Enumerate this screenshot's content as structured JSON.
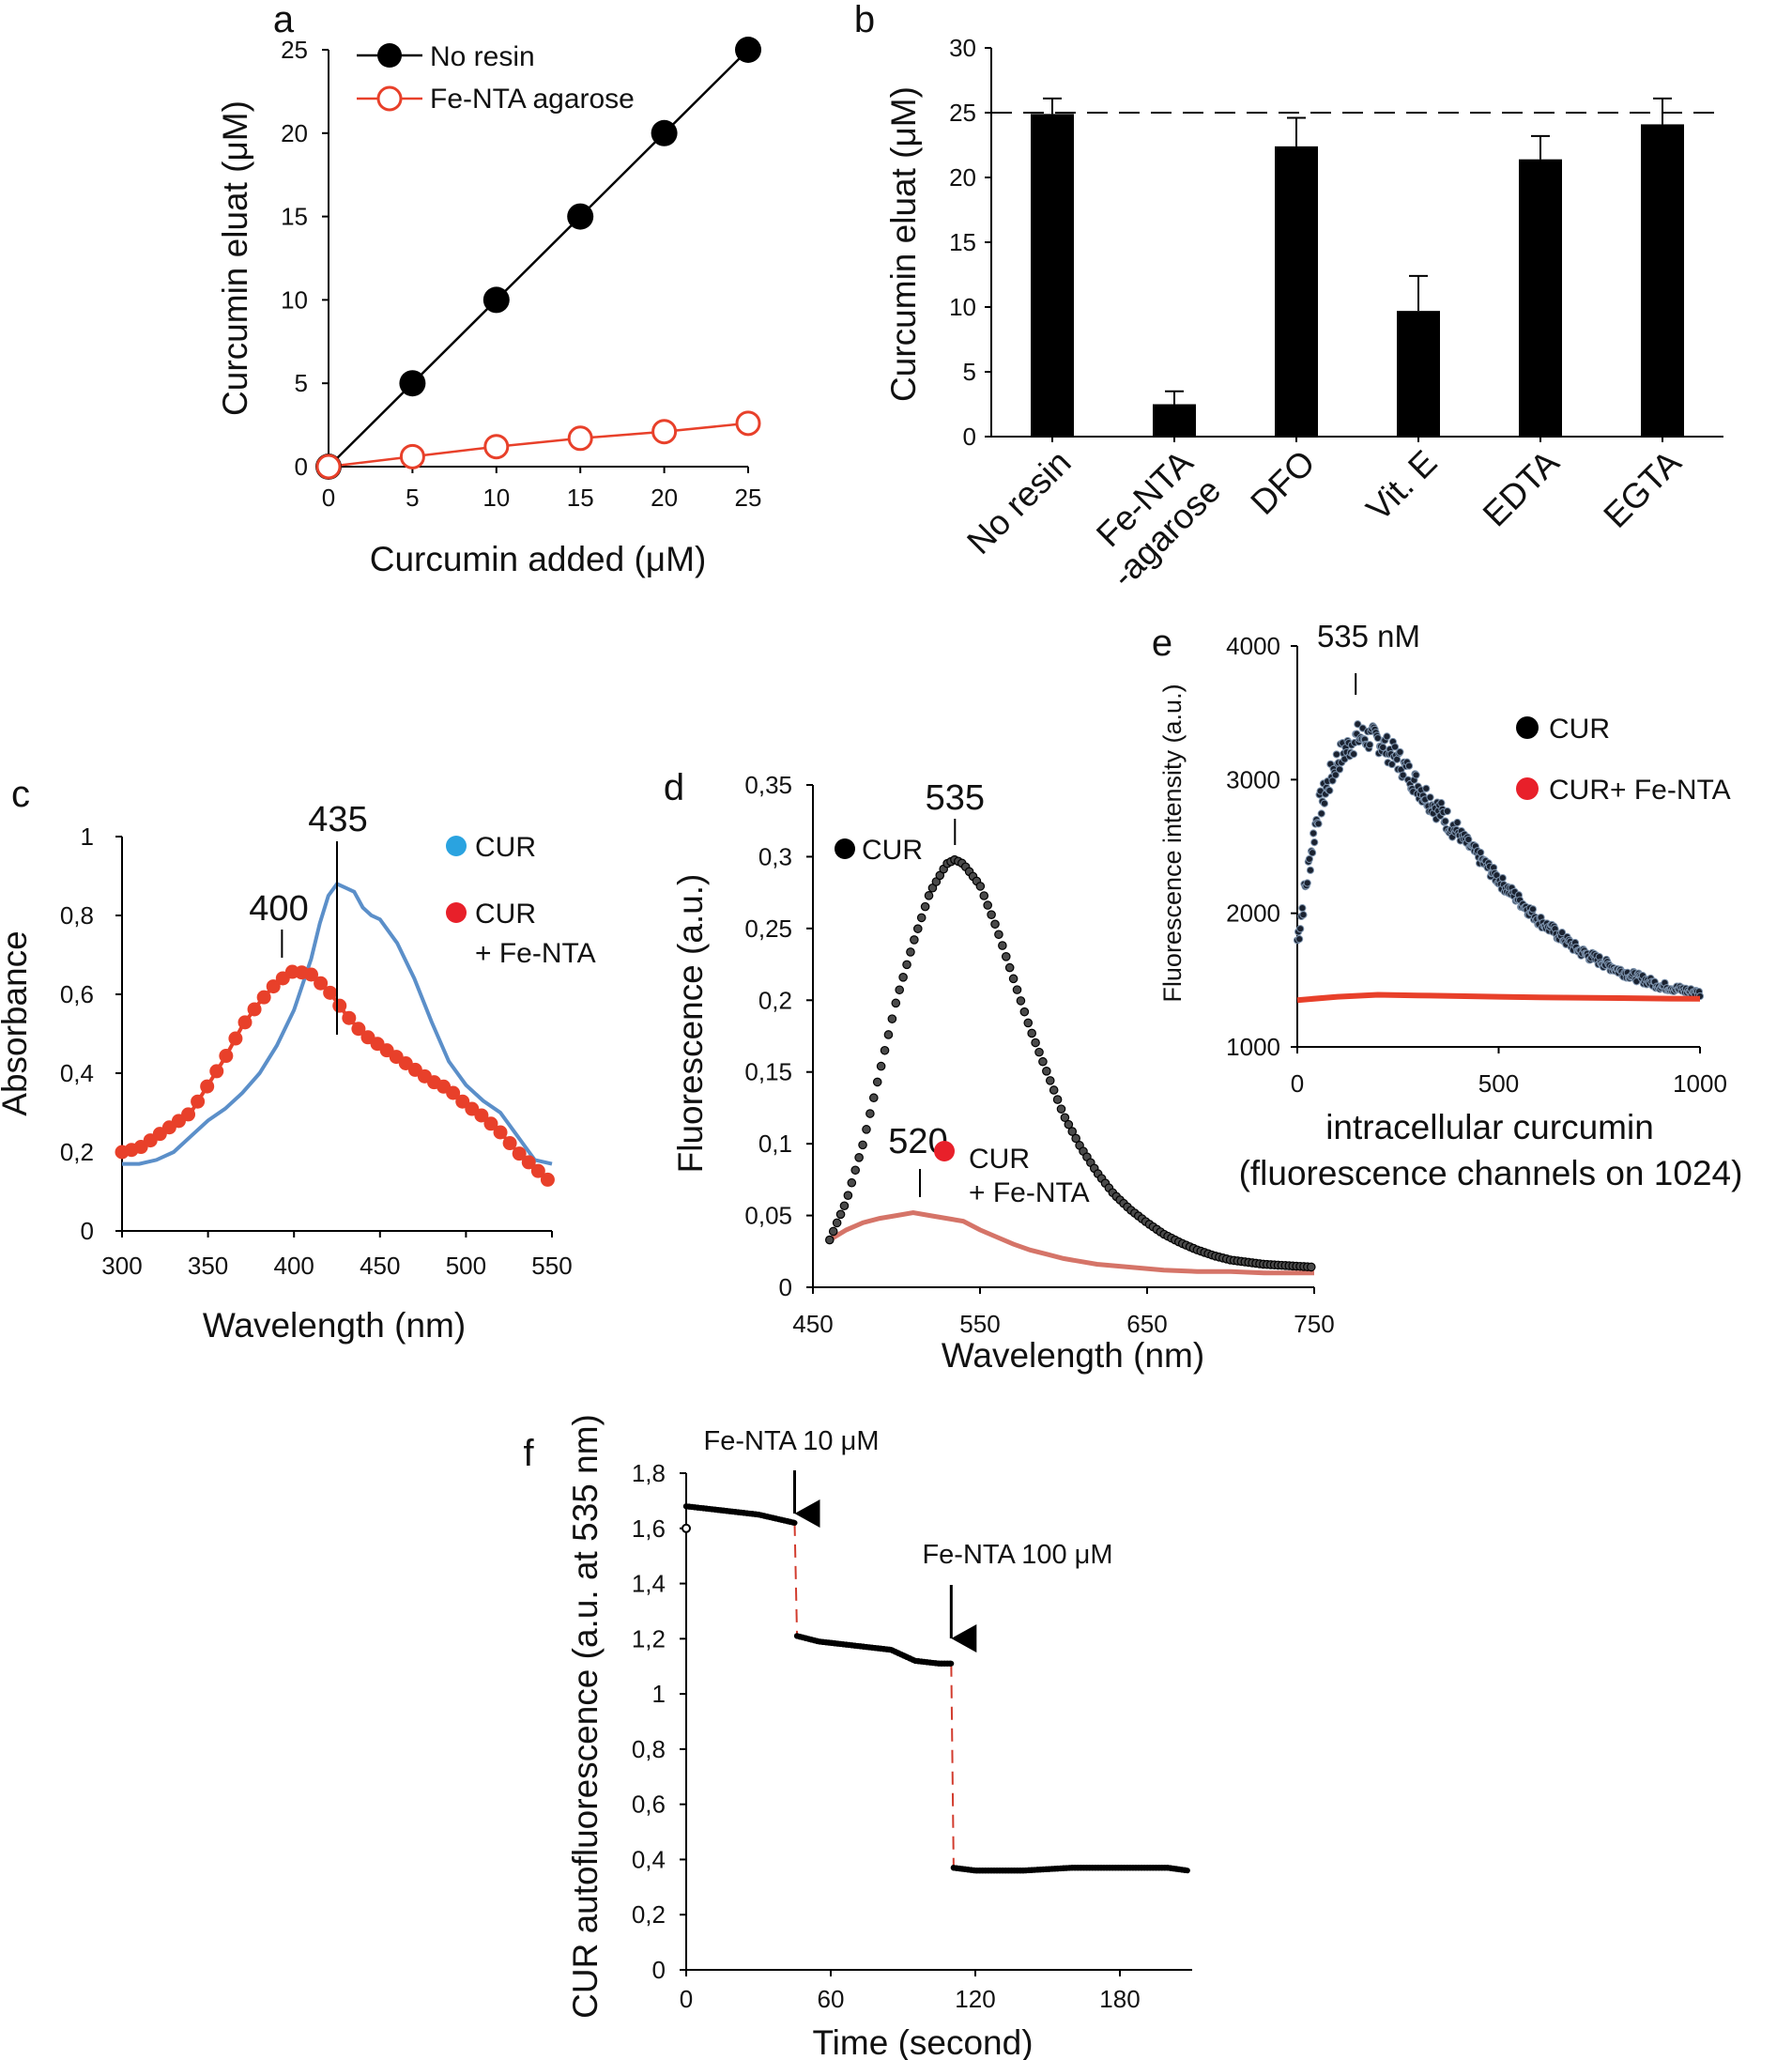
{
  "chart_data": [
    {
      "panel": "a",
      "type": "line",
      "xlabel": "Curcumin added (μM)",
      "ylabel": "Curcumin eluat (μM)",
      "xlim": [
        0,
        25
      ],
      "ylim": [
        0,
        25
      ],
      "xticks": [
        "0",
        "5",
        "10",
        "15",
        "20",
        "25"
      ],
      "yticks": [
        "0",
        "5",
        "10",
        "15",
        "20",
        "25"
      ],
      "legend_position": "top-left",
      "series": [
        {
          "name": "No resin",
          "color": "#000000",
          "marker": "filled-circle",
          "x": [
            0,
            5,
            10,
            15,
            20,
            25
          ],
          "values": [
            0,
            5,
            10,
            15,
            20,
            25
          ]
        },
        {
          "name": "Fe-NTA agarose",
          "color": "#e8402a",
          "marker": "open-circle",
          "x": [
            0,
            5,
            10,
            15,
            20,
            25
          ],
          "values": [
            0,
            0.6,
            1.2,
            1.7,
            2.1,
            2.6
          ]
        }
      ]
    },
    {
      "panel": "b",
      "type": "bar",
      "ylabel": "Curcumin eluat (μM)",
      "ylim": [
        0,
        30
      ],
      "yticks": [
        "0",
        "5",
        "10",
        "15",
        "20",
        "25",
        "30"
      ],
      "categories": [
        "No resin",
        "Fe-NTA\n-agarose",
        "DFO",
        "Vit. E",
        "EDTA",
        "EGTA"
      ],
      "values": [
        24.9,
        2.5,
        22.4,
        9.7,
        21.4,
        24.1
      ],
      "errors": [
        1.2,
        1.0,
        2.2,
        2.7,
        1.8,
        2.0
      ],
      "reference_line": 25,
      "color": "#000000"
    },
    {
      "panel": "c",
      "type": "line",
      "xlabel": "Wavelength (nm)",
      "ylabel": "Absorbance",
      "xlim": [
        300,
        550
      ],
      "ylim": [
        0,
        1
      ],
      "xticks": [
        "300",
        "350",
        "400",
        "450",
        "500",
        "550"
      ],
      "yticks": [
        "0",
        "0,2",
        "0,4",
        "0,6",
        "0,8",
        "1"
      ],
      "annotations": [
        "435",
        "400"
      ],
      "legend": [
        "CUR",
        "CUR\n+ Fe-NTA"
      ],
      "series": [
        {
          "name": "CUR",
          "color": "#5b8fc9",
          "x": [
            300,
            310,
            320,
            330,
            340,
            350,
            360,
            370,
            380,
            390,
            400,
            410,
            415,
            420,
            425,
            430,
            435,
            440,
            445,
            450,
            460,
            470,
            480,
            490,
            500,
            510,
            520,
            530,
            540,
            550
          ],
          "values": [
            0.17,
            0.17,
            0.18,
            0.2,
            0.24,
            0.28,
            0.31,
            0.35,
            0.4,
            0.47,
            0.56,
            0.69,
            0.78,
            0.85,
            0.88,
            0.87,
            0.86,
            0.82,
            0.8,
            0.79,
            0.73,
            0.64,
            0.53,
            0.43,
            0.37,
            0.33,
            0.3,
            0.24,
            0.18,
            0.17
          ]
        },
        {
          "name": "CUR + Fe-NTA",
          "color": "#e8402a",
          "x": [
            300,
            310,
            320,
            330,
            340,
            350,
            360,
            370,
            380,
            390,
            400,
            410,
            420,
            430,
            440,
            450,
            460,
            470,
            480,
            490,
            500,
            510,
            520,
            530,
            540,
            550
          ],
          "values": [
            0.2,
            0.21,
            0.24,
            0.27,
            0.3,
            0.37,
            0.44,
            0.52,
            0.58,
            0.63,
            0.66,
            0.65,
            0.61,
            0.55,
            0.5,
            0.47,
            0.44,
            0.41,
            0.38,
            0.36,
            0.32,
            0.29,
            0.25,
            0.2,
            0.16,
            0.12
          ]
        }
      ]
    },
    {
      "panel": "d",
      "type": "line",
      "xlabel": "Wavelength (nm)",
      "ylabel": "Fluorescence (a.u.)",
      "xlim": [
        450,
        750
      ],
      "ylim": [
        0,
        0.35
      ],
      "xticks": [
        "450",
        "550",
        "650",
        "750"
      ],
      "yticks": [
        "0",
        "0,05",
        "0,1",
        "0,15",
        "0,2",
        "0,25",
        "0,3",
        "0,35"
      ],
      "annotations": [
        "535",
        "520"
      ],
      "legend": [
        "CUR",
        "CUR\n+ Fe-NTA"
      ],
      "series": [
        {
          "name": "CUR",
          "color": "#000000",
          "x": [
            460,
            470,
            480,
            490,
            500,
            510,
            520,
            530,
            535,
            540,
            550,
            560,
            570,
            580,
            590,
            600,
            610,
            620,
            630,
            640,
            650,
            660,
            670,
            680,
            690,
            700,
            720,
            750
          ],
          "values": [
            0.033,
            0.06,
            0.1,
            0.15,
            0.2,
            0.24,
            0.275,
            0.295,
            0.298,
            0.295,
            0.28,
            0.25,
            0.215,
            0.18,
            0.15,
            0.12,
            0.098,
            0.08,
            0.065,
            0.054,
            0.045,
            0.037,
            0.031,
            0.026,
            0.022,
            0.019,
            0.016,
            0.014
          ]
        },
        {
          "name": "CUR + Fe-NTA",
          "color": "#d57468",
          "x": [
            460,
            470,
            480,
            490,
            500,
            510,
            520,
            530,
            540,
            550,
            560,
            570,
            580,
            590,
            600,
            620,
            640,
            660,
            680,
            700,
            720,
            750
          ],
          "values": [
            0.033,
            0.04,
            0.045,
            0.048,
            0.05,
            0.052,
            0.05,
            0.048,
            0.046,
            0.04,
            0.035,
            0.03,
            0.026,
            0.023,
            0.02,
            0.016,
            0.014,
            0.012,
            0.011,
            0.011,
            0.01,
            0.01
          ]
        }
      ]
    },
    {
      "panel": "e",
      "type": "scatter",
      "xlabel": "intracellular curcumin",
      "xlabel2": "(fluorescence  channels on 1024)",
      "ylabel": "Fluorescence intensity (a.u.)",
      "xlim": [
        0,
        1000
      ],
      "ylim": [
        1000,
        4000
      ],
      "xticks": [
        "0",
        "500",
        "1000"
      ],
      "yticks": [
        "1000",
        "2000",
        "3000",
        "4000"
      ],
      "annotations": [
        "535 nM"
      ],
      "legend": [
        "CUR",
        "CUR+ Fe-NTA"
      ],
      "series": [
        {
          "name": "CUR",
          "color": "#000000",
          "x": [
            0,
            50,
            100,
            150,
            200,
            250,
            300,
            400,
            500,
            600,
            700,
            800,
            900,
            1000
          ],
          "values": [
            1800,
            2750,
            3150,
            3320,
            3300,
            3150,
            2950,
            2600,
            2250,
            1950,
            1720,
            1570,
            1460,
            1400
          ]
        },
        {
          "name": "CUR+ Fe-NTA",
          "color": "#e8402a",
          "x": [
            0,
            100,
            200,
            300,
            400,
            500,
            600,
            700,
            800,
            900,
            1000
          ],
          "values": [
            1350,
            1375,
            1390,
            1385,
            1380,
            1375,
            1370,
            1368,
            1365,
            1362,
            1360
          ]
        }
      ]
    },
    {
      "panel": "f",
      "type": "line",
      "xlabel": "Time (second)",
      "ylabel": "CUR autofluorescence (a.u. at 535 nm)",
      "xlim": [
        0,
        210
      ],
      "ylim": [
        0,
        1.8
      ],
      "xticks": [
        "0",
        "60",
        "120",
        "180"
      ],
      "yticks": [
        "0",
        "0,2",
        "0,4",
        "0,6",
        "0,8",
        "1",
        "1,2",
        "1,4",
        "1,6",
        "1,8"
      ],
      "annotations": [
        "Fe-NTA 10 μM",
        "Fe-NTA 100 μM"
      ],
      "events": [
        {
          "time": 45,
          "label": "Fe-NTA 10 μM"
        },
        {
          "time": 110,
          "label": "Fe-NTA 100 μM"
        }
      ],
      "series": [
        {
          "name": "trace",
          "color": "#000000",
          "segments": [
            {
              "x": [
                0,
                10,
                20,
                30,
                40,
                45
              ],
              "values": [
                1.68,
                1.67,
                1.66,
                1.65,
                1.63,
                1.62
              ]
            },
            {
              "x": [
                46,
                55,
                65,
                75,
                85,
                95,
                105,
                110
              ],
              "values": [
                1.21,
                1.19,
                1.18,
                1.17,
                1.16,
                1.12,
                1.11,
                1.11
              ]
            },
            {
              "x": [
                111,
                120,
                140,
                160,
                180,
                200,
                208
              ],
              "values": [
                0.37,
                0.36,
                0.36,
                0.37,
                0.37,
                0.37,
                0.36
              ]
            }
          ]
        },
        {
          "name": "transition",
          "color": "#d23c2e",
          "style": "dashed",
          "x": [
            45,
            46,
            110,
            111
          ],
          "values": [
            1.62,
            1.21,
            1.11,
            0.37
          ]
        }
      ]
    }
  ],
  "panel_labels": [
    "a",
    "b",
    "c",
    "d",
    "e",
    "f"
  ]
}
